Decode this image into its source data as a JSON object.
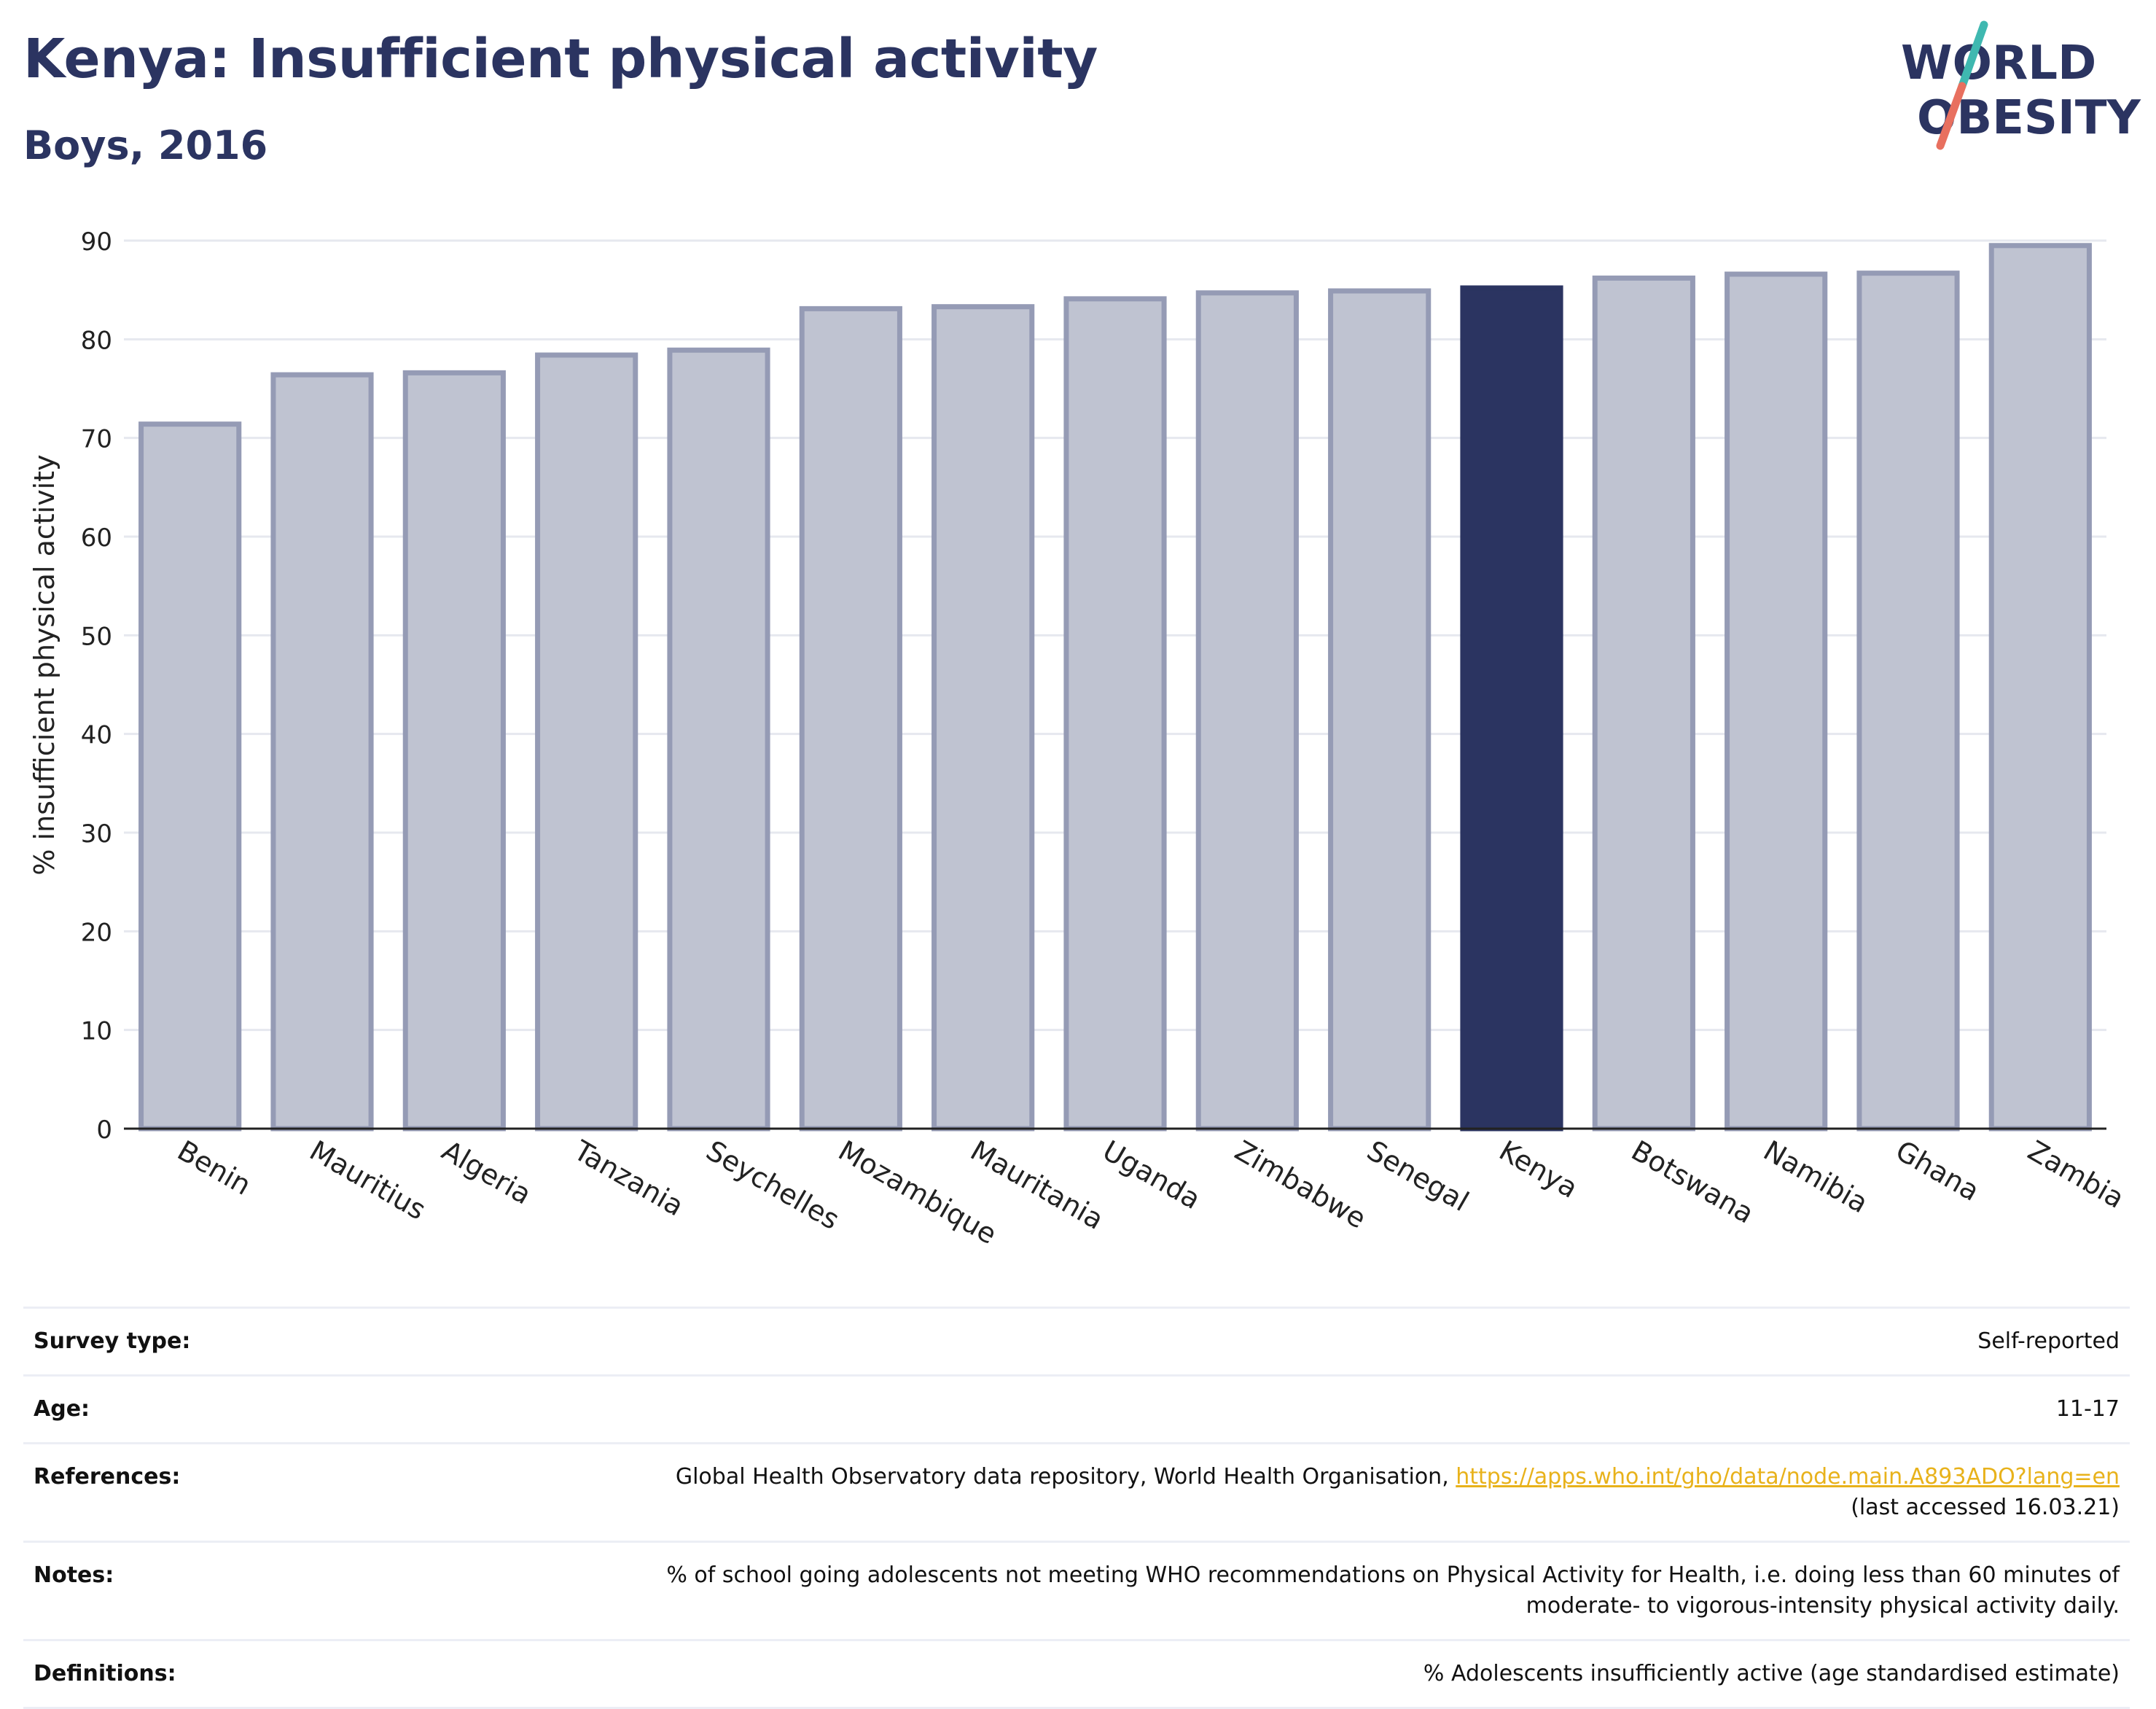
{
  "header": {
    "title": "Kenya: Insufficient physical activity",
    "subtitle": "Boys, 2016"
  },
  "logo": {
    "line1": "WORLD",
    "line2": "OBESITY",
    "colors": {
      "text": "#2b3461",
      "slash_red": "#e8705f",
      "slash_teal": "#3fb8b0"
    }
  },
  "colors": {
    "bar": "#bfc3d1",
    "bar_border": "#959bb5",
    "highlight": "#2b3461",
    "grid": "#e6e8ef",
    "axis": "#222222"
  },
  "chart_data": {
    "type": "bar",
    "title": "",
    "xlabel": "",
    "ylabel": "% insufficient physical activity",
    "ylim": [
      0,
      90
    ],
    "yticks": [
      0,
      10,
      20,
      30,
      40,
      50,
      60,
      70,
      80,
      90
    ],
    "grid": true,
    "highlight": "Kenya",
    "categories": [
      "Benin",
      "Mauritius",
      "Algeria",
      "Tanzania",
      "Seychelles",
      "Mozambique",
      "Mauritania",
      "Uganda",
      "Zimbabwe",
      "Senegal",
      "Kenya",
      "Botswana",
      "Namibia",
      "Ghana",
      "Zambia"
    ],
    "values": [
      71.4,
      76.4,
      76.6,
      78.4,
      78.9,
      83.1,
      83.3,
      84.1,
      84.7,
      84.9,
      85.2,
      86.2,
      86.6,
      86.7,
      89.5
    ]
  },
  "info": {
    "survey_type": {
      "label": "Survey type:",
      "value": "Self-reported"
    },
    "age": {
      "label": "Age:",
      "value": "11-17"
    },
    "references": {
      "label": "References:",
      "text": "Global Health Observatory data repository, World Health Organisation, ",
      "link": "https://apps.who.int/gho/data/node.main.A893ADO?lang=en",
      "accessed": "(last accessed 16.03.21)"
    },
    "notes": {
      "label": "Notes:",
      "line1": "% of school going adolescents not meeting WHO recommendations on Physical Activity for Health, i.e. doing less than 60 minutes of",
      "line2": "moderate- to vigorous-intensity physical activity daily."
    },
    "definitions": {
      "label": "Definitions:",
      "value": "% Adolescents insufficiently active (age standardised estimate)"
    }
  }
}
